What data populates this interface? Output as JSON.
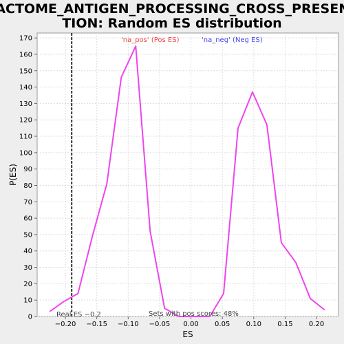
{
  "chart_data": {
    "type": "line",
    "title_lines": [
      "REACTOME_ANTIGEN_PROCESSING_CROSS_PRESENTA",
      "TION: Random ES distribution"
    ],
    "xlabel": "ES",
    "ylabel": "P(ES)",
    "xlim": [
      -0.245,
      0.235
    ],
    "ylim": [
      0,
      173
    ],
    "x_ticks": [
      -0.2,
      -0.15,
      -0.1,
      -0.05,
      0.0,
      0.05,
      0.1,
      0.15,
      0.2
    ],
    "x_tick_labels": [
      "−0.20",
      "−0.15",
      "−0.10",
      "−0.05",
      "0.00",
      "0.05",
      "0.10",
      "0.15",
      "0.20"
    ],
    "y_ticks": [
      0,
      10,
      20,
      30,
      40,
      50,
      60,
      70,
      80,
      90,
      100,
      110,
      120,
      130,
      140,
      150,
      160,
      170
    ],
    "grid": true,
    "legend": [
      "'na_pos' (Pos ES)",
      "'na_neg' (Neg ES)"
    ],
    "legend_colors": [
      "#ee4444",
      "#4444ee"
    ],
    "legend_placement": "top-center",
    "series": [
      {
        "color": "#ee44ee",
        "x": [
          -0.225,
          -0.203,
          -0.18,
          -0.157,
          -0.134,
          -0.111,
          -0.088,
          -0.065,
          -0.042,
          -0.019,
          0.004,
          0.03,
          0.052,
          0.075,
          0.098,
          0.121,
          0.144,
          0.167,
          0.19,
          0.213
        ],
        "y": [
          3,
          9,
          14,
          49,
          81,
          146,
          165,
          52,
          5,
          0,
          0,
          0,
          14,
          115,
          137,
          117,
          45,
          33,
          11,
          4
        ]
      }
    ],
    "real_es": -0.19,
    "real_es_label": "Real ES −0.2",
    "annotation": "Sets with pos scores: 48%"
  }
}
